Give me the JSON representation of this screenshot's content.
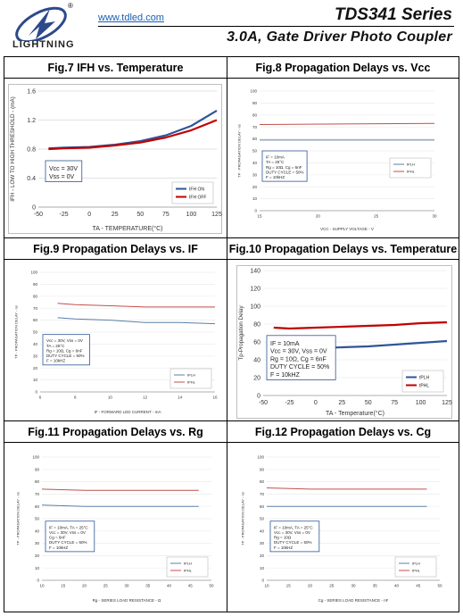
{
  "header": {
    "url": "www.tdled.com",
    "series": "TDS341  Series",
    "subtitle": "3.0A,  Gate  Driver  Photo  Coupler",
    "brand": "LIGHTNING",
    "reg": "®"
  },
  "figures": [
    {
      "id": "fig7",
      "title": "Fig.7 IFH vs. Temperature"
    },
    {
      "id": "fig8",
      "title": "Fig.8 Propagation Delays vs. Vcc"
    },
    {
      "id": "fig9",
      "title": "Fig.9 Propagation Delays vs. IF"
    },
    {
      "id": "fig10",
      "title": "Fig.10 Propagation Delays vs. Temperature"
    },
    {
      "id": "fig11",
      "title": "Fig.11 Propagation Delays vs. Rg"
    },
    {
      "id": "fig12",
      "title": "Fig.12 Propagation Delays vs. Cg"
    }
  ],
  "chart_data": [
    {
      "id": "fig7",
      "type": "line",
      "xlabel": "TA - TEMPERATURE(°C)",
      "ylabel": "IFH - LOW TO HIGH THRESHOLD - (mA)",
      "xticks": [
        "-50",
        "-25",
        "0",
        "25",
        "50",
        "75",
        "100",
        "125"
      ],
      "yticks": [
        "0",
        "0.4",
        "0.8",
        "1.2",
        "1.6"
      ],
      "xlim": [
        -50,
        125
      ],
      "ylim": [
        0,
        1.6
      ],
      "conditions": [
        "Vcc = 30V",
        "Vss = 0V"
      ],
      "series": [
        {
          "name": "IFH ON",
          "color": "#2f5597",
          "x": [
            -40,
            -25,
            0,
            25,
            50,
            75,
            100,
            125
          ],
          "y": [
            0.81,
            0.82,
            0.83,
            0.86,
            0.91,
            0.99,
            1.12,
            1.33
          ]
        },
        {
          "name": "IFH OFF",
          "color": "#c00000",
          "x": [
            -40,
            -25,
            0,
            25,
            50,
            75,
            100,
            125
          ],
          "y": [
            0.8,
            0.81,
            0.82,
            0.85,
            0.89,
            0.96,
            1.06,
            1.2
          ]
        }
      ]
    },
    {
      "id": "fig8",
      "type": "line",
      "xlabel": "VCC - SUPPLY VOLTAGE - V",
      "ylabel": "TP - PROPAGATION DELAY - ns",
      "xticks": [
        "15",
        "20",
        "25",
        "30"
      ],
      "yticks": [
        "0",
        "10",
        "20",
        "30",
        "40",
        "50",
        "60",
        "70",
        "80",
        "90",
        "100"
      ],
      "xlim": [
        15,
        30
      ],
      "ylim": [
        0,
        100
      ],
      "conditions": [
        "IF = 10mA",
        "TA = 25°C",
        "Rg = 10Ω, Cg = 6nF",
        "DUTY CYCLE = 50%",
        "F = 10kHZ"
      ],
      "series": [
        {
          "name": "tPLH",
          "color": "#5b7fa8",
          "x": [
            15,
            30
          ],
          "y": [
            59,
            59
          ]
        },
        {
          "name": "tPHL",
          "color": "#c0504d",
          "x": [
            15,
            30
          ],
          "y": [
            72,
            73
          ]
        }
      ]
    },
    {
      "id": "fig9",
      "type": "line",
      "xlabel": "IF - FORWARD LED CURRENT - mA",
      "ylabel": "TP - PROPAGATION DELAY - ns",
      "xticks": [
        "6",
        "8",
        "10",
        "12",
        "14",
        "16"
      ],
      "yticks": [
        "0",
        "10",
        "20",
        "30",
        "40",
        "50",
        "60",
        "70",
        "80",
        "90",
        "100"
      ],
      "xlim": [
        6,
        16
      ],
      "ylim": [
        0,
        100
      ],
      "conditions": [
        "Vcc = 30V, Vss = 0V",
        "TA = 25°C",
        "Rg = 10Ω, Cg = 6nF",
        "DUTY CYCLE = 50%",
        "F = 10kHZ"
      ],
      "series": [
        {
          "name": "tPLH",
          "color": "#5b7fa8",
          "x": [
            7,
            8,
            10,
            12,
            14,
            16
          ],
          "y": [
            62,
            61,
            60,
            58,
            58,
            57
          ]
        },
        {
          "name": "tPHL",
          "color": "#c0504d",
          "x": [
            7,
            8,
            10,
            12,
            14,
            16
          ],
          "y": [
            74,
            73,
            72,
            71,
            71,
            71
          ]
        }
      ]
    },
    {
      "id": "fig10",
      "type": "line",
      "xlabel": "TA - Temperature(°C)",
      "ylabel": "Tp-Propagation Delay",
      "xticks": [
        "-50",
        "-25",
        "0",
        "25",
        "50",
        "75",
        "100",
        "125"
      ],
      "yticks": [
        "0",
        "20",
        "40",
        "60",
        "80",
        "100",
        "120",
        "140"
      ],
      "xlim": [
        -50,
        125
      ],
      "ylim": [
        0,
        140
      ],
      "conditions": [
        "IF = 10mA",
        "Vcc = 30V, Vss = 0V",
        "Rg = 10Ω, Cg = 6nF",
        "DUTY CYCLE = 50%",
        "F = 10kHZ"
      ],
      "series": [
        {
          "name": "tPLH",
          "color": "#2f5597",
          "x": [
            -40,
            -25,
            0,
            25,
            50,
            75,
            100,
            125
          ],
          "y": [
            52,
            52,
            53,
            54,
            55,
            57,
            59,
            61
          ]
        },
        {
          "name": "tPHL",
          "color": "#c00000",
          "x": [
            -40,
            -25,
            0,
            25,
            50,
            75,
            100,
            125
          ],
          "y": [
            76,
            75,
            76,
            77,
            78,
            79,
            81,
            82
          ]
        }
      ]
    },
    {
      "id": "fig11",
      "type": "line",
      "xlabel": "Rg - SERIES LOAD RESISTANCE - Ω",
      "ylabel": "TP - PROPAGATION DELAY - ns",
      "xticks": [
        "10",
        "15",
        "20",
        "25",
        "30",
        "35",
        "40",
        "45",
        "50"
      ],
      "yticks": [
        "0",
        "10",
        "20",
        "30",
        "40",
        "50",
        "60",
        "70",
        "80",
        "90",
        "100"
      ],
      "xlim": [
        10,
        50
      ],
      "ylim": [
        0,
        100
      ],
      "conditions": [
        "IF = 10mA, TA = 25°C",
        "Vcc = 30V, Vss = 0V",
        "Cg = 6nF",
        "DUTY CYCLE = 50%",
        "F = 10kHZ"
      ],
      "series": [
        {
          "name": "tPLH",
          "color": "#5b7fa8",
          "x": [
            10,
            20,
            30,
            40,
            47
          ],
          "y": [
            61,
            60,
            60,
            60,
            60
          ]
        },
        {
          "name": "tPHL",
          "color": "#c0504d",
          "x": [
            10,
            20,
            30,
            40,
            47
          ],
          "y": [
            74,
            73,
            73,
            73,
            73
          ]
        }
      ]
    },
    {
      "id": "fig12",
      "type": "line",
      "xlabel": "Cg - SERIES LOAD RESISTANCE - nF",
      "ylabel": "TP - PROPAGATION DELAY - ns",
      "xticks": [
        "10",
        "15",
        "20",
        "25",
        "30",
        "35",
        "40",
        "45",
        "50"
      ],
      "yticks": [
        "0",
        "10",
        "20",
        "30",
        "40",
        "50",
        "60",
        "70",
        "80",
        "90",
        "100"
      ],
      "xlim": [
        10,
        50
      ],
      "ylim": [
        0,
        100
      ],
      "conditions": [
        "IF = 10mA, TA = 25°C",
        "Vcc = 30V, Vss = 0V",
        "Rg = 10Ω",
        "DUTY CYCLE = 50%",
        "F = 10kHZ"
      ],
      "series": [
        {
          "name": "tPLH",
          "color": "#5b7fa8",
          "x": [
            10,
            20,
            30,
            40,
            47
          ],
          "y": [
            60,
            60,
            60,
            60,
            60
          ]
        },
        {
          "name": "tPHL",
          "color": "#c0504d",
          "x": [
            10,
            20,
            30,
            40,
            47
          ],
          "y": [
            75,
            74,
            74,
            74,
            74
          ]
        }
      ]
    }
  ]
}
